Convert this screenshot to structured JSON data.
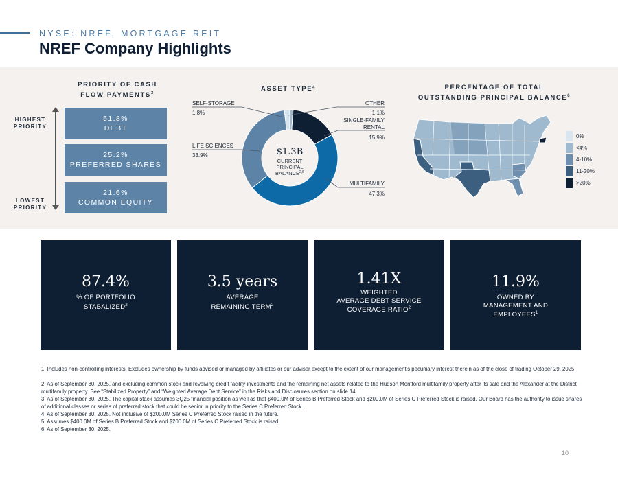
{
  "header": {
    "eyebrow": "NYSE: NREF, MORTGAGE REIT",
    "title": "NREF Company Highlights"
  },
  "priority": {
    "title_line1": "PRIORITY OF CASH",
    "title_line2": "FLOW PAYMENTS",
    "title_sup": "3",
    "highest_line1": "HIGHEST",
    "highest_line2": "PRIORITY",
    "lowest_line1": "LOWEST",
    "lowest_line2": "PRIORITY",
    "boxes": [
      {
        "pct": "51.8%",
        "label": "DEBT"
      },
      {
        "pct": "25.2%",
        "label": "PREFERRED SHARES"
      },
      {
        "pct": "21.6%",
        "label": "COMMON EQUITY"
      }
    ]
  },
  "asset_type": {
    "title": "ASSET TYPE",
    "title_sup": "4",
    "center_value": "$1.3B",
    "center_line1": "CURRENT",
    "center_line2": "PRINCIPAL",
    "center_line3": "BALANCE",
    "center_sup": "2,5",
    "labels": {
      "self_storage": "SELF-STORAGE",
      "self_storage_pct": "1.8%",
      "life_sciences": "LIFE SCIENCES",
      "life_sciences_pct": "33.9%",
      "other": "OTHER",
      "other_pct": "1.1%",
      "sfr_line1": "SINGLE-FAMILY",
      "sfr_line2": "RENTAL",
      "sfr_pct": "15.9%",
      "multifamily": "MULTIFAMILY",
      "multifamily_pct": "47.3%"
    }
  },
  "chart_data": {
    "type": "pie",
    "categories": [
      "Other",
      "Single-Family Rental",
      "Multifamily",
      "Life Sciences",
      "Self-Storage"
    ],
    "values": [
      1.1,
      15.9,
      47.3,
      33.9,
      1.8
    ],
    "colors": [
      "#9fb9cf",
      "#0f1f33",
      "#0e6aa6",
      "#5d84a7",
      "#d6e4ef"
    ],
    "title": "ASSET TYPE"
  },
  "map": {
    "title_line1": "PERCENTAGE OF TOTAL",
    "title_line2": "OUTSTANDING PRINCIPAL BALANCE",
    "title_sup": "6",
    "legend": [
      {
        "label": "0%",
        "color": "#d9e5ef"
      },
      {
        "label": "<4%",
        "color": "#9fb9cf"
      },
      {
        "label": "4-10%",
        "color": "#6e8fad"
      },
      {
        "label": "11-20%",
        "color": "#3c5f80"
      },
      {
        "label": ">20%",
        "color": "#0f1f33"
      }
    ]
  },
  "stats": [
    {
      "value": "87.4%",
      "line1": "% OF PORTFOLIO",
      "line2": "STABALIZED",
      "sup": "2",
      "line3": ""
    },
    {
      "value": "3.5 years",
      "line1": "AVERAGE",
      "line2": "REMAINING TERM",
      "sup": "2",
      "line3": ""
    },
    {
      "value": "1.41X",
      "line1": "WEIGHTED",
      "line2": "AVERAGE DEBT SERVICE",
      "line3": "COVERAGE RATIO",
      "sup": "2"
    },
    {
      "value": "11.9%",
      "line1": "OWNED BY",
      "line2": "MANAGEMENT AND",
      "line3": "EMPLOYEES",
      "sup": "1"
    }
  ],
  "footnotes": [
    "1. Includes non-controlling interests. Excludes ownership by funds advised or managed by affiliates or our adviser except to the extent of our management’s pecuniary interest therein as of the close of trading October 29, 2025.",
    "2. As of September 30, 2025, and excluding common stock and revolving credit facility investments and the remaining net assets related to the Hudson Montford multifamily property after its sale and the Alexander at the District multifamily property. See “Stabilized Property” and “Weighted Average Debt Service” in the Risks and Disclosures section on slide 14.",
    "3. As of September 30, 2025. The capital stack assumes 3Q25 financial position as well as that $400.0M of Series B Preferred Stock and $200.0M of Series C Preferred Stock is raised. Our Board has the authority to issue shares of additional classes or series of preferred stock that could be senior in priority to the Series C Preferred Stock.",
    "4. As of September 30, 2025. Not inclusive of $200.0M Series C Preferred Stock raised in the future.",
    "5. Assumes $400.0M of Series B Preferred Stock and $200.0M of Series C Preferred Stock is raised.",
    "6. As of September 30, 2025."
  ],
  "page_number": "10"
}
